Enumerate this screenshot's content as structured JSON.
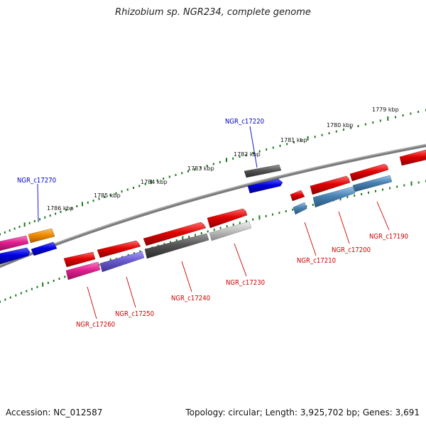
{
  "title": "Rhizobium sp. NGR234, complete genome",
  "footer": {
    "accession": "Accession: NC_012587",
    "summary": "Topology: circular; Length: 3,925,702 bp; Genes: 3,691"
  },
  "ruler": {
    "labels": [
      "1779 kbp",
      "1780 kbp",
      "1781 kbp",
      "1782 kbp",
      "1783 kbp",
      "1784 kbp",
      "1785 kbp",
      "1786 kbp"
    ]
  },
  "labels": {
    "top": [
      {
        "id": "NGR_c17220",
        "color": "#0000cc"
      },
      {
        "id": "NGR_c17270",
        "color": "#0000cc"
      }
    ],
    "bottom": [
      {
        "id": "NGR_c17190",
        "color": "#cc0000"
      },
      {
        "id": "NGR_c17200",
        "color": "#cc0000"
      },
      {
        "id": "NGR_c17210",
        "color": "#cc0000"
      },
      {
        "id": "NGR_c17230",
        "color": "#cc0000"
      },
      {
        "id": "NGR_c17240",
        "color": "#cc0000"
      },
      {
        "id": "NGR_c17250",
        "color": "#cc0000"
      },
      {
        "id": "NGR_c17260",
        "color": "#cc0000"
      }
    ]
  },
  "colors": {
    "red": "#e00000",
    "blue": "#0000e0",
    "pink": "#e0208f",
    "orange": "#f08a00",
    "purple": "#6a5acd",
    "dark_gray": "#555555",
    "light_gray": "#b8b8b8",
    "steel_blue": "#4682b4",
    "backbone": "#7a7a7a",
    "ruler_green": "#1a7a1a"
  }
}
